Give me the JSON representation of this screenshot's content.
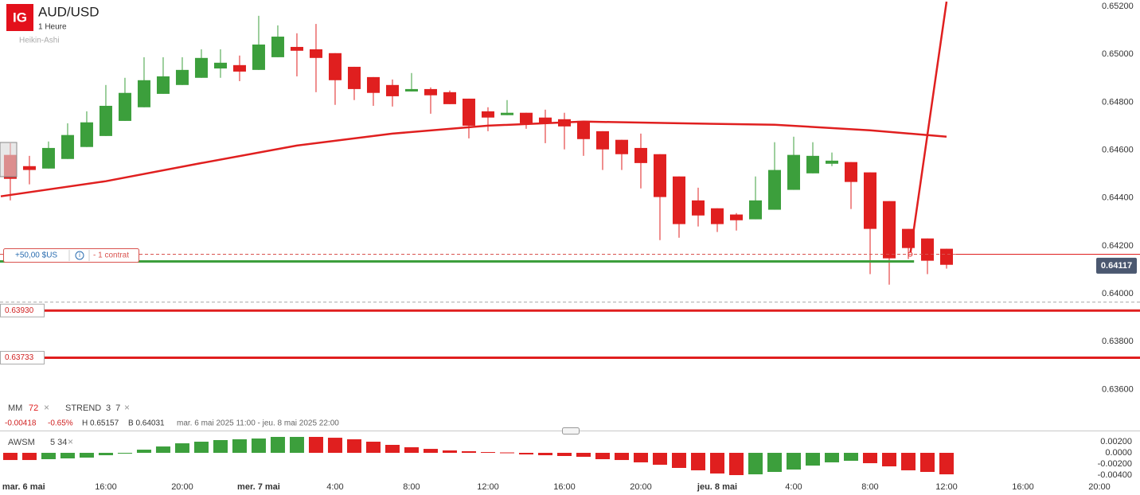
{
  "header": {
    "logo": "IG",
    "symbol": "AUD/USD",
    "interval": "1 Heure",
    "chart_style": "Heikin-Ashi"
  },
  "position": {
    "pnl": "+50,00 $US",
    "info": "i",
    "size": "- 1 contrat"
  },
  "stats": [
    "-0.00418",
    "-0.65%",
    "H 0.65157",
    "B 0.64031",
    "mar. 6 mai 2025 11:00 - jeu. 8 mai 2025 22:00"
  ],
  "chart_data": [
    {
      "type": "candlestick",
      "up_color": "#3c9f3c",
      "down_color": "#e01f1f",
      "grid": false,
      "xlim": [
        -0.54,
        58.5
      ],
      "xticks": [
        {
          "value": 0.7,
          "label": "mar. 6 mai"
        },
        {
          "value": 5,
          "label": "16:00"
        },
        {
          "value": 9,
          "label": "20:00"
        },
        {
          "value": 13,
          "label": "mer. 7 mai"
        },
        {
          "value": 17,
          "label": "4:00"
        },
        {
          "value": 21,
          "label": "8:00"
        },
        {
          "value": 25,
          "label": "12:00"
        },
        {
          "value": 29,
          "label": "16:00"
        },
        {
          "value": 33,
          "label": "20:00"
        },
        {
          "value": 37,
          "label": "jeu. 8 mai"
        },
        {
          "value": 41,
          "label": "4:00"
        },
        {
          "value": 45,
          "label": "8:00"
        },
        {
          "value": 49,
          "label": "12:00"
        },
        {
          "value": 53,
          "label": "16:00"
        },
        {
          "value": 57,
          "label": "20:00"
        }
      ],
      "ylim": [
        0.63565,
        0.65227
      ],
      "yticks": [
        {
          "value": 0.652,
          "label": "0.65200"
        },
        {
          "value": 0.65,
          "label": "0.65000"
        },
        {
          "value": 0.648,
          "label": "0.64800"
        },
        {
          "value": 0.646,
          "label": "0.64600"
        },
        {
          "value": 0.644,
          "label": "0.64400"
        },
        {
          "value": 0.642,
          "label": "0.64200"
        },
        {
          "value": 0.64,
          "label": "0.64000"
        },
        {
          "value": 0.638,
          "label": "0.63800"
        },
        {
          "value": 0.636,
          "label": "0.63600"
        }
      ],
      "open": [
        0.6458,
        0.64533,
        0.64523,
        0.64563,
        0.64613,
        0.64659,
        0.64722,
        0.64779,
        0.64835,
        0.64872,
        0.64902,
        0.64941,
        0.64955,
        0.64935,
        0.64988,
        0.65031,
        0.65021,
        0.65005,
        0.64948,
        0.64905,
        0.64872,
        0.64845,
        0.64855,
        0.64842,
        0.64815,
        0.64762,
        0.64746,
        0.64756,
        0.64736,
        0.64729,
        0.64722,
        0.64679,
        0.64643,
        0.64609,
        0.64583,
        0.6449,
        0.6439,
        0.64357,
        0.64331,
        0.64311,
        0.64351,
        0.64434,
        0.64503,
        0.64543,
        0.6455,
        0.64507,
        0.64387,
        0.64271,
        0.64231,
        0.64188
      ],
      "high": [
        0.64629,
        0.64576,
        0.64636,
        0.64712,
        0.64762,
        0.64872,
        0.64902,
        0.64988,
        0.64988,
        0.64988,
        0.65021,
        0.65021,
        0.64995,
        0.65161,
        0.65121,
        0.65088,
        0.65127,
        0.65005,
        0.64948,
        0.64905,
        0.64895,
        0.64922,
        0.64862,
        0.64849,
        0.64815,
        0.64779,
        0.64809,
        0.64756,
        0.64769,
        0.64756,
        0.64722,
        0.64679,
        0.64643,
        0.64669,
        0.64583,
        0.6449,
        0.64443,
        0.64357,
        0.64337,
        0.6449,
        0.64633,
        0.64656,
        0.64633,
        0.6459,
        0.6455,
        0.64507,
        0.64387,
        0.64271,
        0.64231,
        0.64188
      ],
      "low": [
        0.6439,
        0.64457,
        0.64523,
        0.64563,
        0.64613,
        0.64659,
        0.64722,
        0.64779,
        0.64835,
        0.64872,
        0.64902,
        0.64902,
        0.64888,
        0.64935,
        0.64988,
        0.64908,
        0.64842,
        0.64789,
        0.64809,
        0.64785,
        0.64782,
        0.64845,
        0.64752,
        0.64792,
        0.64649,
        0.64679,
        0.64746,
        0.64689,
        0.64629,
        0.64603,
        0.64576,
        0.64517,
        0.64517,
        0.6444,
        0.64224,
        0.64234,
        0.64281,
        0.64258,
        0.64264,
        0.64311,
        0.64351,
        0.64434,
        0.64503,
        0.64533,
        0.64354,
        0.64082,
        0.64038,
        0.64145,
        0.64082,
        0.64105
      ],
      "close": [
        0.6448,
        0.64517,
        0.64609,
        0.64663,
        0.64716,
        0.64785,
        0.64839,
        0.64892,
        0.64908,
        0.64935,
        0.64985,
        0.64965,
        0.64928,
        0.65041,
        0.65074,
        0.65015,
        0.64985,
        0.64892,
        0.64855,
        0.64839,
        0.64825,
        0.64855,
        0.64829,
        0.64792,
        0.64702,
        0.64736,
        0.64756,
        0.64712,
        0.64712,
        0.64699,
        0.64646,
        0.64603,
        0.64583,
        0.64546,
        0.64404,
        0.64291,
        0.64327,
        0.64291,
        0.64307,
        0.6439,
        0.64517,
        0.6458,
        0.64576,
        0.64556,
        0.64467,
        0.64271,
        0.64148,
        0.64191,
        0.64138,
        0.64121
      ],
      "indicators": [
        {
          "name": "MM",
          "params": "72",
          "color": "#e01f1f",
          "x": [
            -0.5,
            5,
            10,
            15,
            20,
            25,
            30,
            35,
            40,
            45,
            49
          ],
          "values": [
            0.64407,
            0.6447,
            0.64546,
            0.64619,
            0.64669,
            0.64702,
            0.64719,
            0.64712,
            0.64706,
            0.64683,
            0.64656
          ]
        },
        {
          "name": "STREND",
          "params": "3 7",
          "color": "#e01f1f",
          "x": [
            47.1,
            49
          ],
          "values": [
            0.64165,
            0.6522
          ]
        }
      ],
      "levels": [
        {
          "value": 0.64165,
          "color": "#d9534f",
          "dashed": true
        },
        {
          "value": 0.64135,
          "color": "#3c9f3c",
          "dashed": false
        },
        {
          "value": 0.63965,
          "color": "#aaaaaa",
          "dashed": true
        },
        {
          "value": 0.6393,
          "label": "0.63930",
          "color": "#e01f1f",
          "dashed": false
        },
        {
          "value": 0.63733,
          "label": "0.63733",
          "color": "#e01f1f",
          "dashed": false
        }
      ],
      "last_price": {
        "value": 0.64117,
        "label": "0.64117"
      }
    },
    {
      "type": "bar",
      "name": "AWSM",
      "params": "5 34",
      "ylim": [
        -0.005,
        0.00386
      ],
      "yticks": [
        {
          "value": 0.002,
          "label": "0.00200"
        },
        {
          "value": 0,
          "label": "0.0000"
        },
        {
          "value": -0.002,
          "label": "-0.00200"
        },
        {
          "value": -0.004,
          "label": "-0.00400"
        }
      ],
      "values": [
        -0.00129,
        -0.00129,
        -0.00114,
        -0.001,
        -0.00086,
        -0.00043,
        -7e-05,
        0.00057,
        0.00114,
        0.00171,
        0.002,
        0.00229,
        0.00243,
        0.00257,
        0.00286,
        0.00286,
        0.00286,
        0.00271,
        0.00243,
        0.002,
        0.00143,
        0.001,
        0.00071,
        0.00043,
        0.00029,
        0.00014,
        7e-05,
        -0.00029,
        -0.00043,
        -0.00057,
        -0.00071,
        -0.00114,
        -0.00129,
        -0.00171,
        -0.00214,
        -0.00271,
        -0.00314,
        -0.00371,
        -0.004,
        -0.00386,
        -0.00343,
        -0.003,
        -0.00229,
        -0.00171,
        -0.00143,
        -0.00186,
        -0.00243,
        -0.00314,
        -0.00343,
        -0.00386
      ],
      "colors": [
        "#e01f1f",
        "#e01f1f",
        "#3c9f3c",
        "#3c9f3c",
        "#3c9f3c",
        "#3c9f3c",
        "#3c9f3c",
        "#3c9f3c",
        "#3c9f3c",
        "#3c9f3c",
        "#3c9f3c",
        "#3c9f3c",
        "#3c9f3c",
        "#3c9f3c",
        "#3c9f3c",
        "#3c9f3c",
        "#e01f1f",
        "#e01f1f",
        "#e01f1f",
        "#e01f1f",
        "#e01f1f",
        "#e01f1f",
        "#e01f1f",
        "#e01f1f",
        "#e01f1f",
        "#e01f1f",
        "#e01f1f",
        "#e01f1f",
        "#e01f1f",
        "#e01f1f",
        "#e01f1f",
        "#e01f1f",
        "#e01f1f",
        "#e01f1f",
        "#e01f1f",
        "#e01f1f",
        "#e01f1f",
        "#e01f1f",
        "#e01f1f",
        "#3c9f3c",
        "#3c9f3c",
        "#3c9f3c",
        "#3c9f3c",
        "#3c9f3c",
        "#3c9f3c",
        "#e01f1f",
        "#e01f1f",
        "#e01f1f",
        "#e01f1f",
        "#e01f1f"
      ]
    }
  ]
}
